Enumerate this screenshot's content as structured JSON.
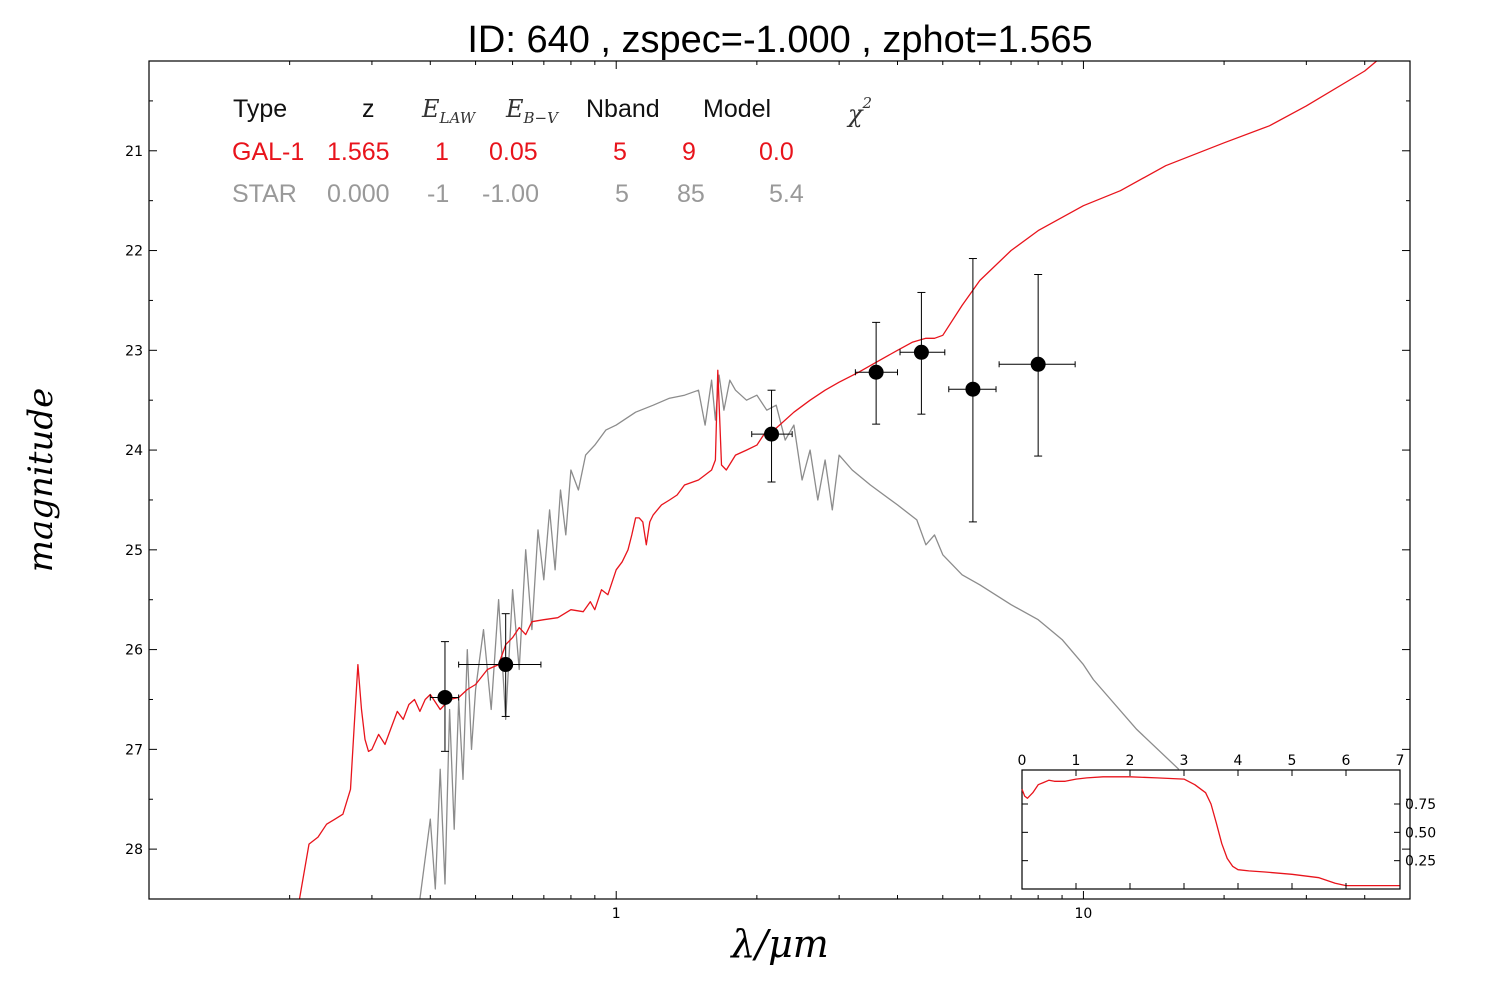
{
  "title": "ID:  640    , zspec=-1.000 , zphot=1.565",
  "colors": {
    "galaxy": "#e8141c",
    "star": "#8c8c8c",
    "points": "#000000"
  },
  "chart_data": [
    {
      "type": "scatter",
      "name": "main",
      "xlabel": "λ/μm",
      "ylabel": "magnitude",
      "xscale": "log",
      "yaxis_inverted": true,
      "xlim": [
        0.1,
        50
      ],
      "ylim": [
        28.5,
        20.1
      ],
      "x_ticks": [
        {
          "v": 1,
          "label": "1"
        },
        {
          "v": 10,
          "label": "10"
        }
      ],
      "y_ticks": [
        21,
        22,
        23,
        24,
        25,
        26,
        27,
        28
      ],
      "grid": false,
      "legend_table": {
        "headers": [
          "Type",
          "z",
          "E_LAW",
          "E_B−V",
          "Nband",
          "Model",
          "χ²"
        ],
        "rows": [
          {
            "type": "GAL-1",
            "z": "1.565",
            "elaw": "1",
            "ebv": "0.05",
            "nband": "5",
            "model": "9",
            "chi2": "0.0",
            "color": "#e8141c"
          },
          {
            "type": "STAR",
            "z": "0.000",
            "elaw": "-1",
            "ebv": "-1.00",
            "nband": "5",
            "model": "85",
            "chi2": "5.4",
            "color": "#999999"
          }
        ]
      },
      "photometry": [
        {
          "x": 0.43,
          "y": 26.48,
          "xlo": 0.4,
          "xhi": 0.46,
          "ylo": 25.92,
          "yhi": 27.02
        },
        {
          "x": 0.58,
          "y": 26.15,
          "xlo": 0.46,
          "xhi": 0.69,
          "ylo": 25.64,
          "yhi": 26.67
        },
        {
          "x": 2.15,
          "y": 23.84,
          "xlo": 1.95,
          "xhi": 2.38,
          "ylo": 23.4,
          "yhi": 24.32
        },
        {
          "x": 3.6,
          "y": 23.22,
          "xlo": 3.25,
          "xhi": 4.0,
          "ylo": 22.72,
          "yhi": 23.74
        },
        {
          "x": 4.5,
          "y": 23.02,
          "xlo": 4.05,
          "xhi": 5.05,
          "ylo": 22.42,
          "yhi": 23.64
        },
        {
          "x": 5.8,
          "y": 23.39,
          "xlo": 5.15,
          "xhi": 6.5,
          "ylo": 22.08,
          "yhi": 24.72
        },
        {
          "x": 8.0,
          "y": 23.14,
          "xlo": 6.6,
          "xhi": 9.6,
          "ylo": 22.24,
          "yhi": 24.06
        }
      ],
      "series": [
        {
          "name": "GAL-1",
          "x": [
            0.21,
            0.22,
            0.23,
            0.24,
            0.25,
            0.26,
            0.27,
            0.275,
            0.28,
            0.285,
            0.29,
            0.295,
            0.3,
            0.31,
            0.32,
            0.33,
            0.34,
            0.35,
            0.36,
            0.37,
            0.38,
            0.39,
            0.4,
            0.42,
            0.44,
            0.46,
            0.48,
            0.5,
            0.53,
            0.56,
            0.58,
            0.6,
            0.62,
            0.64,
            0.66,
            0.7,
            0.75,
            0.8,
            0.85,
            0.88,
            0.9,
            0.93,
            0.96,
            1.0,
            1.03,
            1.06,
            1.08,
            1.1,
            1.12,
            1.14,
            1.16,
            1.18,
            1.2,
            1.25,
            1.3,
            1.35,
            1.4,
            1.5,
            1.55,
            1.6,
            1.63,
            1.65,
            1.68,
            1.72,
            1.8,
            1.9,
            2.0,
            2.1,
            2.2,
            2.4,
            2.6,
            2.8,
            3.0,
            3.3,
            3.6,
            4.0,
            4.3,
            4.6,
            4.8,
            5.0,
            5.5,
            6.0,
            7.0,
            8.0,
            10.0,
            12.0,
            15.0,
            20.0,
            25.0,
            30.0,
            40.0,
            45.0
          ],
          "y": [
            28.5,
            27.95,
            27.88,
            27.75,
            27.7,
            27.65,
            27.4,
            26.75,
            26.15,
            26.6,
            26.9,
            27.02,
            27.0,
            26.85,
            26.95,
            26.78,
            26.62,
            26.7,
            26.55,
            26.5,
            26.62,
            26.5,
            26.45,
            26.6,
            26.5,
            26.48,
            26.4,
            26.35,
            26.2,
            26.15,
            25.95,
            25.88,
            25.78,
            25.85,
            25.72,
            25.7,
            25.68,
            25.6,
            25.62,
            25.52,
            25.6,
            25.4,
            25.45,
            25.2,
            25.12,
            25.0,
            24.85,
            24.68,
            24.68,
            24.72,
            24.95,
            24.72,
            24.65,
            24.55,
            24.5,
            24.45,
            24.35,
            24.3,
            24.25,
            24.2,
            24.1,
            23.2,
            24.15,
            24.2,
            24.05,
            24.0,
            23.95,
            23.8,
            23.78,
            23.62,
            23.5,
            23.4,
            23.32,
            23.22,
            23.12,
            23.0,
            22.92,
            22.88,
            22.88,
            22.85,
            22.55,
            22.3,
            22.0,
            21.8,
            21.55,
            21.4,
            21.15,
            20.92,
            20.75,
            20.55,
            20.2,
            20.0
          ]
        },
        {
          "name": "STAR",
          "x": [
            0.38,
            0.4,
            0.41,
            0.42,
            0.43,
            0.44,
            0.45,
            0.46,
            0.47,
            0.48,
            0.49,
            0.5,
            0.52,
            0.54,
            0.56,
            0.58,
            0.6,
            0.62,
            0.64,
            0.66,
            0.68,
            0.7,
            0.72,
            0.74,
            0.76,
            0.78,
            0.8,
            0.83,
            0.86,
            0.9,
            0.95,
            1.0,
            1.1,
            1.2,
            1.3,
            1.4,
            1.5,
            1.55,
            1.6,
            1.63,
            1.66,
            1.7,
            1.75,
            1.8,
            1.9,
            2.0,
            2.1,
            2.2,
            2.3,
            2.4,
            2.5,
            2.6,
            2.7,
            2.8,
            2.9,
            3.0,
            3.2,
            3.5,
            4.0,
            4.4,
            4.6,
            4.8,
            5.0,
            5.5,
            6.0,
            7.0,
            8.0,
            9.0,
            10.0,
            10.5,
            13.0,
            16.0
          ],
          "y": [
            28.5,
            27.7,
            28.4,
            27.2,
            28.35,
            26.6,
            27.8,
            26.5,
            27.3,
            26.0,
            27.0,
            26.4,
            25.8,
            26.6,
            25.5,
            26.7,
            25.4,
            26.2,
            25.0,
            25.8,
            24.8,
            25.3,
            24.6,
            25.2,
            24.4,
            24.85,
            24.2,
            24.4,
            24.05,
            23.95,
            23.8,
            23.75,
            23.62,
            23.55,
            23.48,
            23.45,
            23.4,
            23.75,
            23.3,
            23.7,
            23.25,
            23.6,
            23.3,
            23.4,
            23.5,
            23.45,
            23.6,
            23.55,
            23.9,
            23.75,
            24.3,
            24.0,
            24.5,
            24.1,
            24.6,
            24.05,
            24.2,
            24.35,
            24.55,
            24.7,
            24.95,
            24.85,
            25.05,
            25.25,
            25.35,
            25.55,
            25.7,
            25.9,
            26.15,
            26.3,
            26.8,
            27.2
          ]
        }
      ]
    },
    {
      "type": "line",
      "name": "inset",
      "xlim": [
        0,
        7
      ],
      "ylim": [
        0,
        1.05
      ],
      "x_ticks": [
        0,
        1,
        2,
        3,
        4,
        5,
        6,
        7
      ],
      "y_ticks": [
        {
          "v": 0.25,
          "label": "0.25"
        },
        {
          "v": 0.5,
          "label": "0.50"
        },
        {
          "v": 0.75,
          "label": "0.75"
        }
      ],
      "series": [
        {
          "name": "",
          "x": [
            0,
            0.05,
            0.1,
            0.2,
            0.3,
            0.4,
            0.5,
            0.6,
            0.8,
            1.0,
            1.2,
            1.5,
            2.0,
            2.5,
            3.0,
            3.2,
            3.4,
            3.5,
            3.6,
            3.7,
            3.8,
            3.9,
            4.0,
            4.2,
            4.5,
            5.0,
            5.5,
            5.8,
            6.0,
            6.5,
            7.0
          ],
          "y": [
            0.88,
            0.82,
            0.8,
            0.85,
            0.92,
            0.94,
            0.96,
            0.95,
            0.95,
            0.97,
            0.98,
            0.99,
            0.99,
            0.98,
            0.97,
            0.92,
            0.85,
            0.75,
            0.58,
            0.4,
            0.27,
            0.2,
            0.17,
            0.16,
            0.15,
            0.13,
            0.1,
            0.05,
            0.03,
            0.03,
            0.03
          ]
        }
      ]
    }
  ]
}
